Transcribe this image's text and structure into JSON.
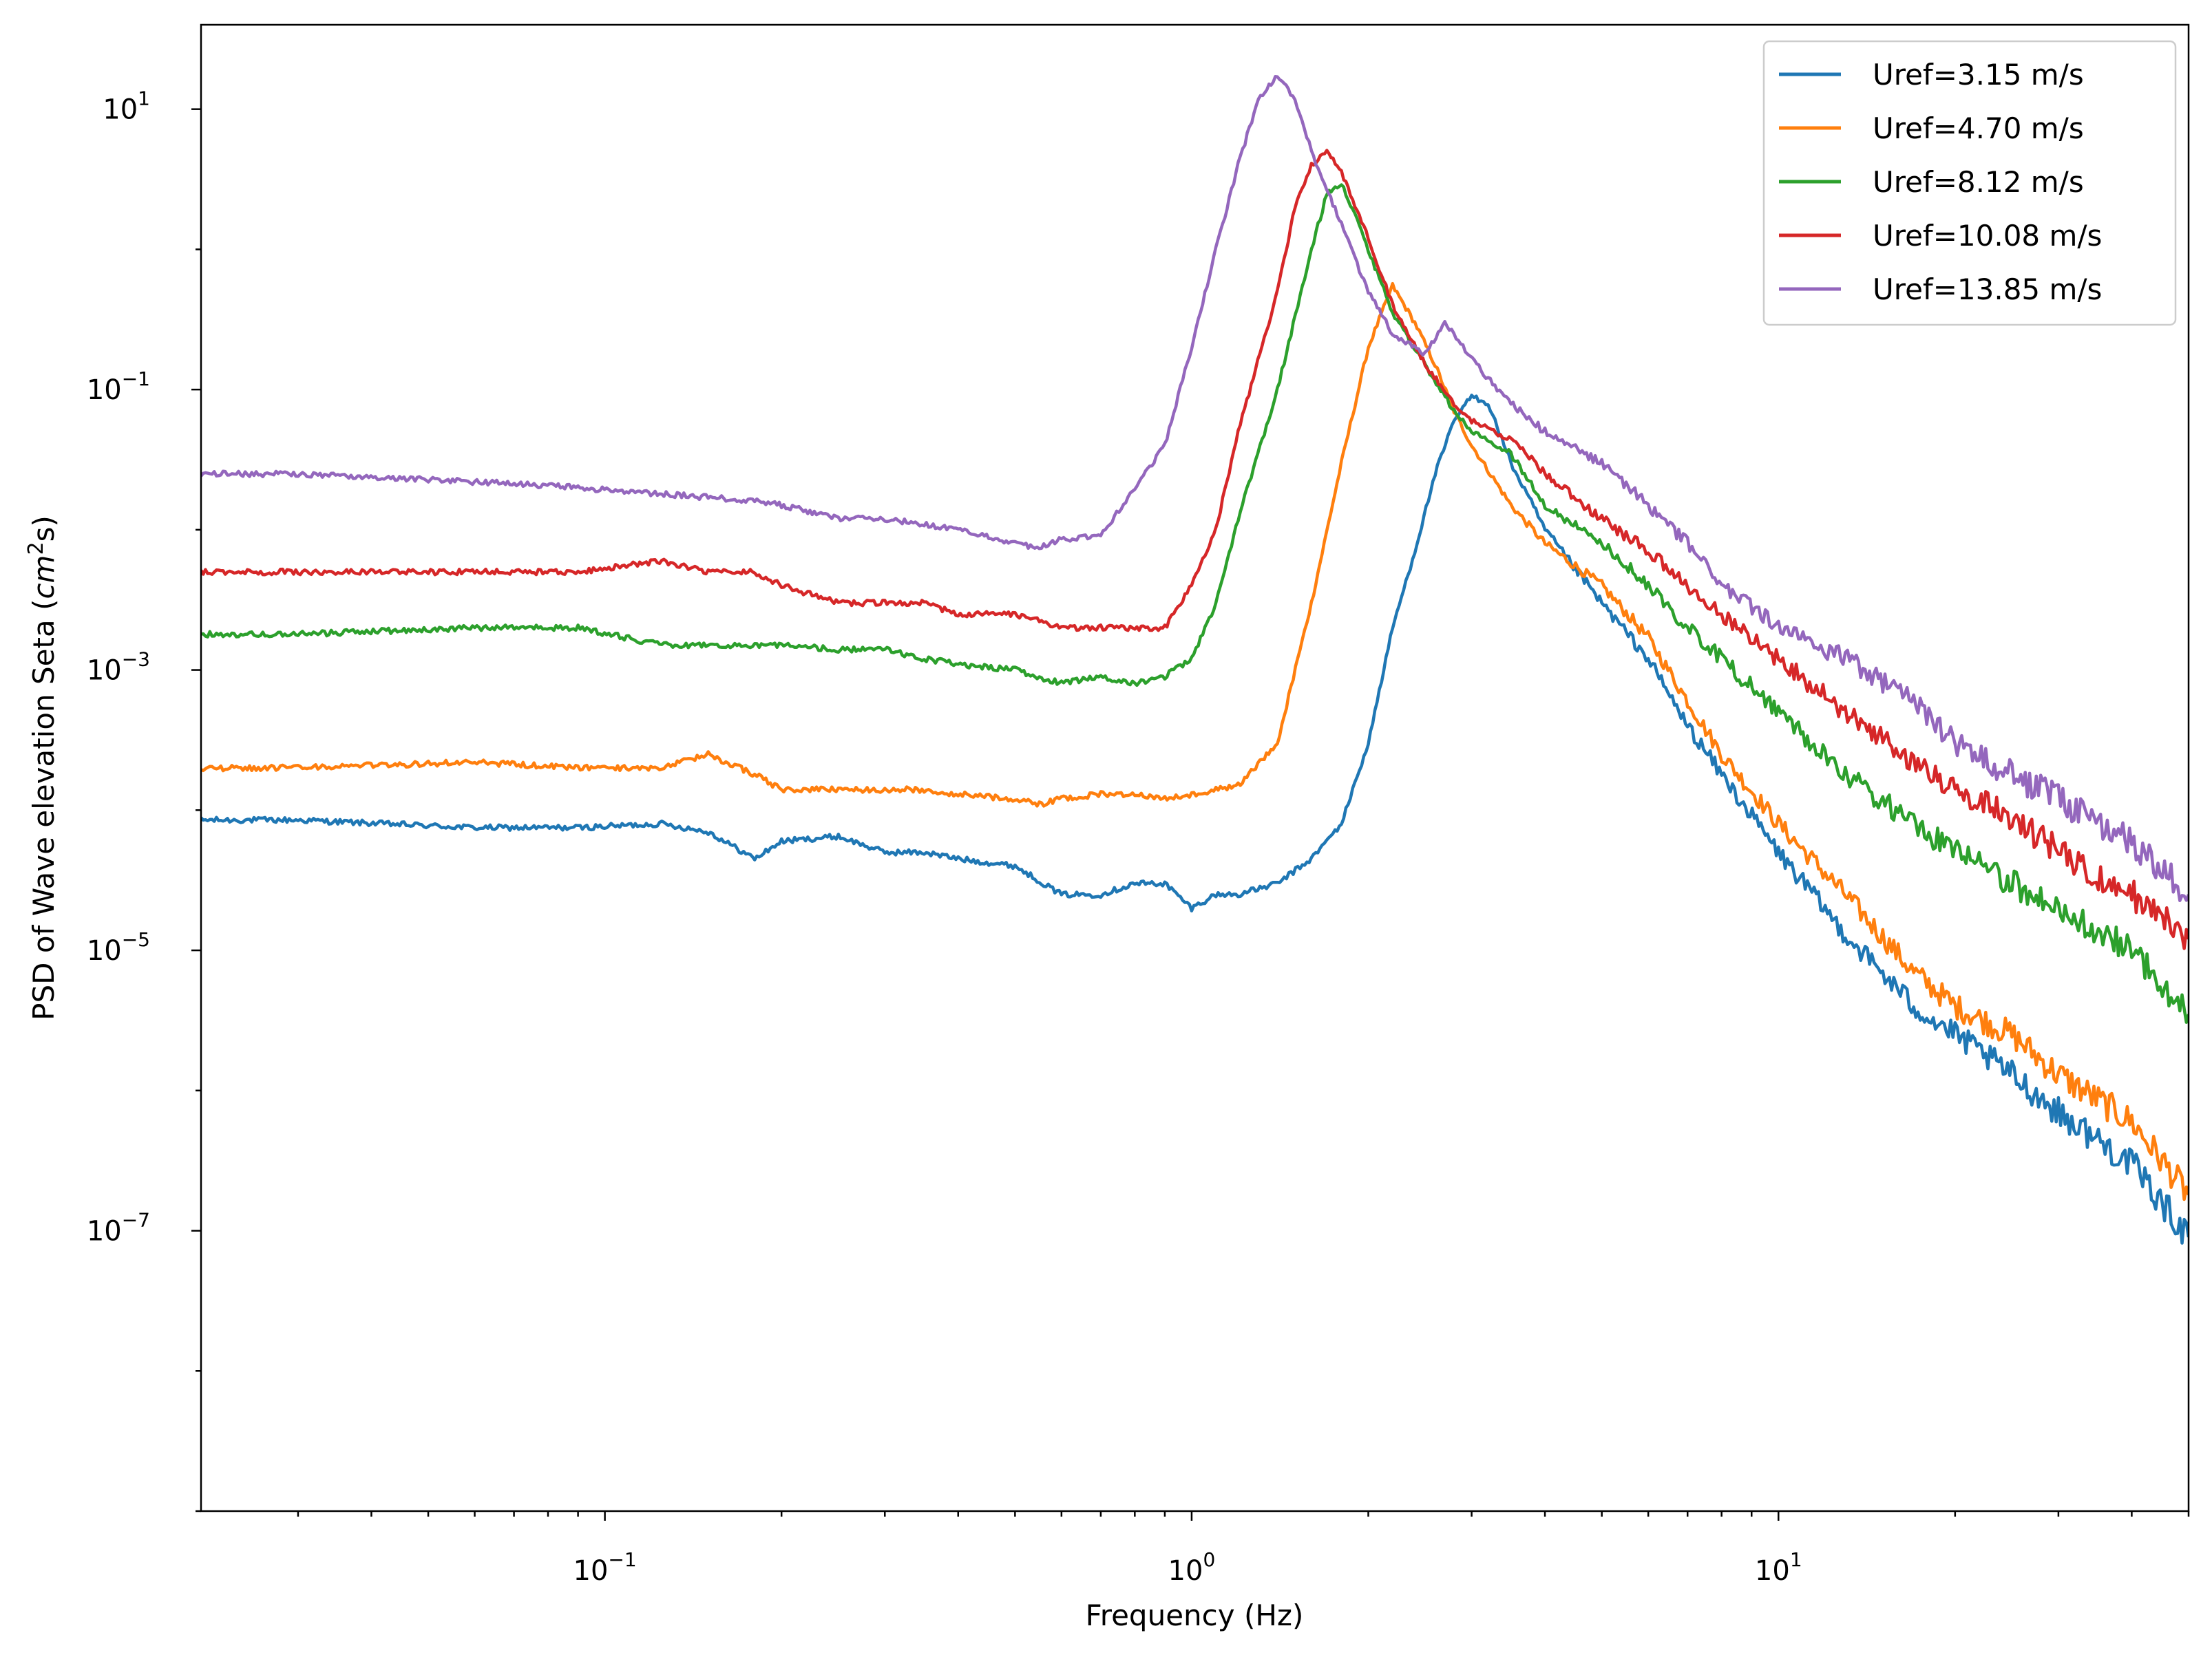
{
  "chart_data": {
    "type": "line",
    "title": "",
    "xlabel": "Frequency (Hz)",
    "ylabel": "PSD of Wave elevation Seta (cm²s)",
    "ylabel_parts": {
      "main": "PSD of Wave elevation Seta (",
      "var": "cm",
      "exp": "2",
      "tail": "s)"
    },
    "xscale": "log",
    "yscale": "log",
    "xlim": [
      0.0205,
      50
    ],
    "ylim": [
      1e-09,
      40
    ],
    "grid": false,
    "legend_position": "top-right",
    "x_ticks": [
      {
        "value": 0.1,
        "base": "10",
        "exp": "−1"
      },
      {
        "value": 1,
        "base": "10",
        "exp": "0"
      },
      {
        "value": 10,
        "base": "10",
        "exp": "1"
      }
    ],
    "y_ticks": [
      {
        "value": 10,
        "base": "10",
        "exp": "1"
      },
      {
        "value": 0.1,
        "base": "10",
        "exp": "−1"
      },
      {
        "value": 0.001,
        "base": "10",
        "exp": "−3"
      },
      {
        "value": 1e-05,
        "base": "10",
        "exp": "−5"
      },
      {
        "value": 1e-07,
        "base": "10",
        "exp": "−7"
      }
    ],
    "series": [
      {
        "name": "Uref=3.15 m/s",
        "color": "#1f77b4",
        "x": [
          0.0205,
          0.03,
          0.06,
          0.09,
          0.125,
          0.15,
          0.18,
          0.2,
          0.25,
          0.3,
          0.35,
          0.4,
          0.5,
          0.6,
          0.7,
          0.8,
          0.9,
          1.0,
          1.1,
          1.2,
          1.4,
          1.6,
          1.8,
          2.0,
          2.2,
          2.4,
          2.6,
          2.8,
          3.0,
          3.2,
          3.5,
          4.0,
          5.0,
          6.0,
          7.0,
          8.0,
          10.0,
          13.0,
          17.0,
          20.0,
          25.0,
          30.0,
          40.0,
          50.0
        ],
        "y": [
          8.5e-05,
          8.5e-05,
          7.5e-05,
          7.5e-05,
          8e-05,
          7e-05,
          4.5e-05,
          6e-05,
          6.5e-05,
          5e-05,
          5e-05,
          4.5e-05,
          4e-05,
          2.5e-05,
          2.5e-05,
          3e-05,
          3e-05,
          2e-05,
          2.5e-05,
          2.5e-05,
          3e-05,
          4.5e-05,
          8e-05,
          0.0003,
          0.002,
          0.007,
          0.025,
          0.06,
          0.09,
          0.08,
          0.03,
          0.01,
          0.003,
          0.0012,
          0.0004,
          0.00018,
          5e-05,
          1.3e-05,
          4e-06,
          2.5e-06,
          1.3e-06,
          7e-07,
          3e-07,
          9e-08
        ]
      },
      {
        "name": "Uref=4.70 m/s",
        "color": "#ff7f0e",
        "x": [
          0.0205,
          0.03,
          0.06,
          0.09,
          0.125,
          0.15,
          0.18,
          0.2,
          0.25,
          0.3,
          0.35,
          0.4,
          0.5,
          0.55,
          0.6,
          0.7,
          0.8,
          0.9,
          1.0,
          1.1,
          1.2,
          1.4,
          1.6,
          1.8,
          2.0,
          2.2,
          2.4,
          2.6,
          2.8,
          3.0,
          3.5,
          4.0,
          5.0,
          6.0,
          7.0,
          8.0,
          10.0,
          13.0,
          17.0,
          20.0,
          25.0,
          30.0,
          40.0,
          50.0
        ],
        "y": [
          0.0002,
          0.0002,
          0.00022,
          0.0002,
          0.0002,
          0.00025,
          0.00018,
          0.00014,
          0.00014,
          0.00014,
          0.00014,
          0.00013,
          0.00012,
          0.00011,
          0.00012,
          0.00013,
          0.00013,
          0.00012,
          0.00013,
          0.00014,
          0.00015,
          0.0003,
          0.003,
          0.03,
          0.2,
          0.55,
          0.3,
          0.15,
          0.07,
          0.04,
          0.015,
          0.008,
          0.004,
          0.0017,
          0.0006,
          0.00025,
          8e-05,
          2.5e-05,
          7e-06,
          4e-06,
          2.5e-06,
          1.3e-06,
          6e-07,
          1.8e-07
        ]
      },
      {
        "name": "Uref=8.12 m/s",
        "color": "#2ca02c",
        "x": [
          0.0205,
          0.03,
          0.06,
          0.09,
          0.125,
          0.15,
          0.18,
          0.2,
          0.25,
          0.3,
          0.35,
          0.4,
          0.5,
          0.6,
          0.7,
          0.8,
          0.9,
          1.0,
          1.1,
          1.2,
          1.4,
          1.6,
          1.7,
          1.8,
          2.0,
          2.2,
          2.5,
          2.8,
          3.0,
          3.5,
          4.0,
          5.0,
          6.0,
          7.0,
          8.0,
          10.0,
          13.0,
          17.0,
          20.0,
          25.0,
          30.0,
          40.0,
          50.0
        ],
        "y": [
          0.0018,
          0.0018,
          0.002,
          0.002,
          0.0015,
          0.0015,
          0.0015,
          0.0015,
          0.0014,
          0.0014,
          0.0012,
          0.0011,
          0.001,
          0.0008,
          0.0009,
          0.0008,
          0.0009,
          0.0012,
          0.003,
          0.012,
          0.1,
          1.0,
          2.5,
          3.0,
          1.0,
          0.35,
          0.15,
          0.07,
          0.05,
          0.035,
          0.015,
          0.008,
          0.004,
          0.002,
          0.0012,
          0.0005,
          0.00018,
          8e-05,
          5e-05,
          3e-05,
          2e-05,
          1e-05,
          3.5e-06
        ]
      },
      {
        "name": "Uref=10.08 m/s",
        "color": "#d62728",
        "x": [
          0.0205,
          0.03,
          0.06,
          0.09,
          0.125,
          0.15,
          0.18,
          0.2,
          0.25,
          0.3,
          0.35,
          0.4,
          0.5,
          0.6,
          0.7,
          0.8,
          0.9,
          1.0,
          1.1,
          1.2,
          1.4,
          1.5,
          1.6,
          1.7,
          1.8,
          2.0,
          2.2,
          2.5,
          2.8,
          3.0,
          3.3,
          3.6,
          4.0,
          5.0,
          6.0,
          7.0,
          8.0,
          10.0,
          13.0,
          17.0,
          20.0,
          25.0,
          30.0,
          40.0,
          50.0
        ],
        "y": [
          0.005,
          0.005,
          0.005,
          0.005,
          0.006,
          0.005,
          0.005,
          0.004,
          0.003,
          0.003,
          0.003,
          0.0025,
          0.0025,
          0.002,
          0.002,
          0.002,
          0.002,
          0.004,
          0.01,
          0.05,
          0.5,
          2.0,
          4.0,
          5.0,
          3.5,
          1.2,
          0.4,
          0.15,
          0.08,
          0.06,
          0.05,
          0.04,
          0.025,
          0.012,
          0.007,
          0.004,
          0.0025,
          0.0012,
          0.0005,
          0.00022,
          0.00014,
          9e-05,
          5e-05,
          2.5e-05,
          1.2e-05
        ]
      },
      {
        "name": "Uref=13.85 m/s",
        "color": "#9467bd",
        "x": [
          0.0205,
          0.03,
          0.06,
          0.09,
          0.125,
          0.15,
          0.18,
          0.2,
          0.25,
          0.3,
          0.35,
          0.4,
          0.5,
          0.55,
          0.6,
          0.7,
          0.8,
          0.9,
          1.0,
          1.1,
          1.2,
          1.3,
          1.4,
          1.5,
          1.6,
          1.8,
          2.0,
          2.2,
          2.5,
          2.7,
          2.9,
          3.2,
          3.5,
          4.0,
          5.0,
          6.0,
          7.0,
          8.0,
          10.0,
          13.0,
          17.0,
          20.0,
          25.0,
          30.0,
          40.0,
          50.0
        ],
        "y": [
          0.025,
          0.025,
          0.022,
          0.02,
          0.018,
          0.017,
          0.016,
          0.015,
          0.012,
          0.012,
          0.011,
          0.01,
          0.008,
          0.0075,
          0.0085,
          0.009,
          0.02,
          0.04,
          0.2,
          1.0,
          4.0,
          12.0,
          17.0,
          12.0,
          5.0,
          1.5,
          0.5,
          0.25,
          0.18,
          0.3,
          0.2,
          0.12,
          0.08,
          0.05,
          0.03,
          0.015,
          0.008,
          0.004,
          0.002,
          0.0012,
          0.0006,
          0.0003,
          0.00018,
          0.00012,
          6e-05,
          2.5e-05
        ]
      }
    ]
  }
}
